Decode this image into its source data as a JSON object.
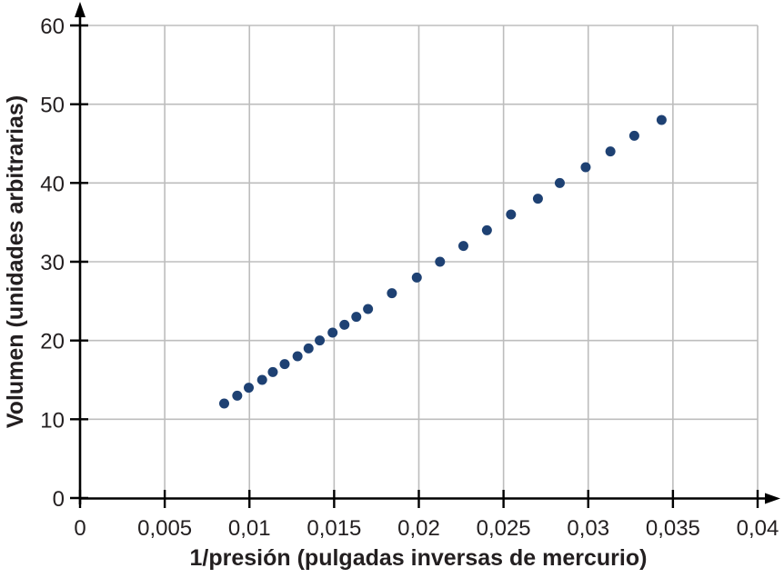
{
  "page": {
    "background": "#ffffff"
  },
  "chart_data": {
    "type": "scatter",
    "title": "",
    "xlabel": "1/presión (pulgadas inversas de mercurio)",
    "ylabel": "Volumen (unidades arbitrarias)",
    "xlim": [
      0,
      0.04
    ],
    "ylim": [
      0,
      60
    ],
    "grid": true,
    "legend_position": "none",
    "x_ticks": [
      {
        "value": 0,
        "label": "0"
      },
      {
        "value": 0.005,
        "label": "0,005"
      },
      {
        "value": 0.01,
        "label": "0,01"
      },
      {
        "value": 0.015,
        "label": "0,015"
      },
      {
        "value": 0.02,
        "label": "0,02"
      },
      {
        "value": 0.025,
        "label": "0,025"
      },
      {
        "value": 0.03,
        "label": "0,03"
      },
      {
        "value": 0.035,
        "label": "0,035"
      },
      {
        "value": 0.04,
        "label": "0,04"
      }
    ],
    "y_ticks": [
      {
        "value": 0,
        "label": "0"
      },
      {
        "value": 10,
        "label": "10"
      },
      {
        "value": 20,
        "label": "20"
      },
      {
        "value": 30,
        "label": "30"
      },
      {
        "value": 40,
        "label": "40"
      },
      {
        "value": 50,
        "label": "50"
      },
      {
        "value": 60,
        "label": "60"
      }
    ],
    "series": [
      {
        "name": "volumen-vs-inverso-de-presion",
        "marker": "circle",
        "marker_radius_px": 5.5,
        "color": "#1e4173",
        "points": [
          {
            "x": 0.00851,
            "y": 12
          },
          {
            "x": 0.00928,
            "y": 13
          },
          {
            "x": 0.00996,
            "y": 14
          },
          {
            "x": 0.01075,
            "y": 15
          },
          {
            "x": 0.01138,
            "y": 16
          },
          {
            "x": 0.01208,
            "y": 17
          },
          {
            "x": 0.01284,
            "y": 18
          },
          {
            "x": 0.01349,
            "y": 19
          },
          {
            "x": 0.01415,
            "y": 20
          },
          {
            "x": 0.01491,
            "y": 21
          },
          {
            "x": 0.01561,
            "y": 22
          },
          {
            "x": 0.01631,
            "y": 23
          },
          {
            "x": 0.017,
            "y": 24
          },
          {
            "x": 0.01841,
            "y": 26
          },
          {
            "x": 0.01988,
            "y": 28
          },
          {
            "x": 0.02125,
            "y": 30
          },
          {
            "x": 0.02263,
            "y": 32
          },
          {
            "x": 0.02402,
            "y": 34
          },
          {
            "x": 0.02544,
            "y": 36
          },
          {
            "x": 0.02703,
            "y": 38
          },
          {
            "x": 0.02832,
            "y": 40
          },
          {
            "x": 0.02985,
            "y": 42
          },
          {
            "x": 0.03131,
            "y": 44
          },
          {
            "x": 0.03272,
            "y": 46
          },
          {
            "x": 0.03433,
            "y": 48
          }
        ]
      }
    ],
    "colors": {
      "point": "#1e4173",
      "grid": "#bdbdbd",
      "axis": "#000000",
      "text": "#231f20"
    }
  }
}
